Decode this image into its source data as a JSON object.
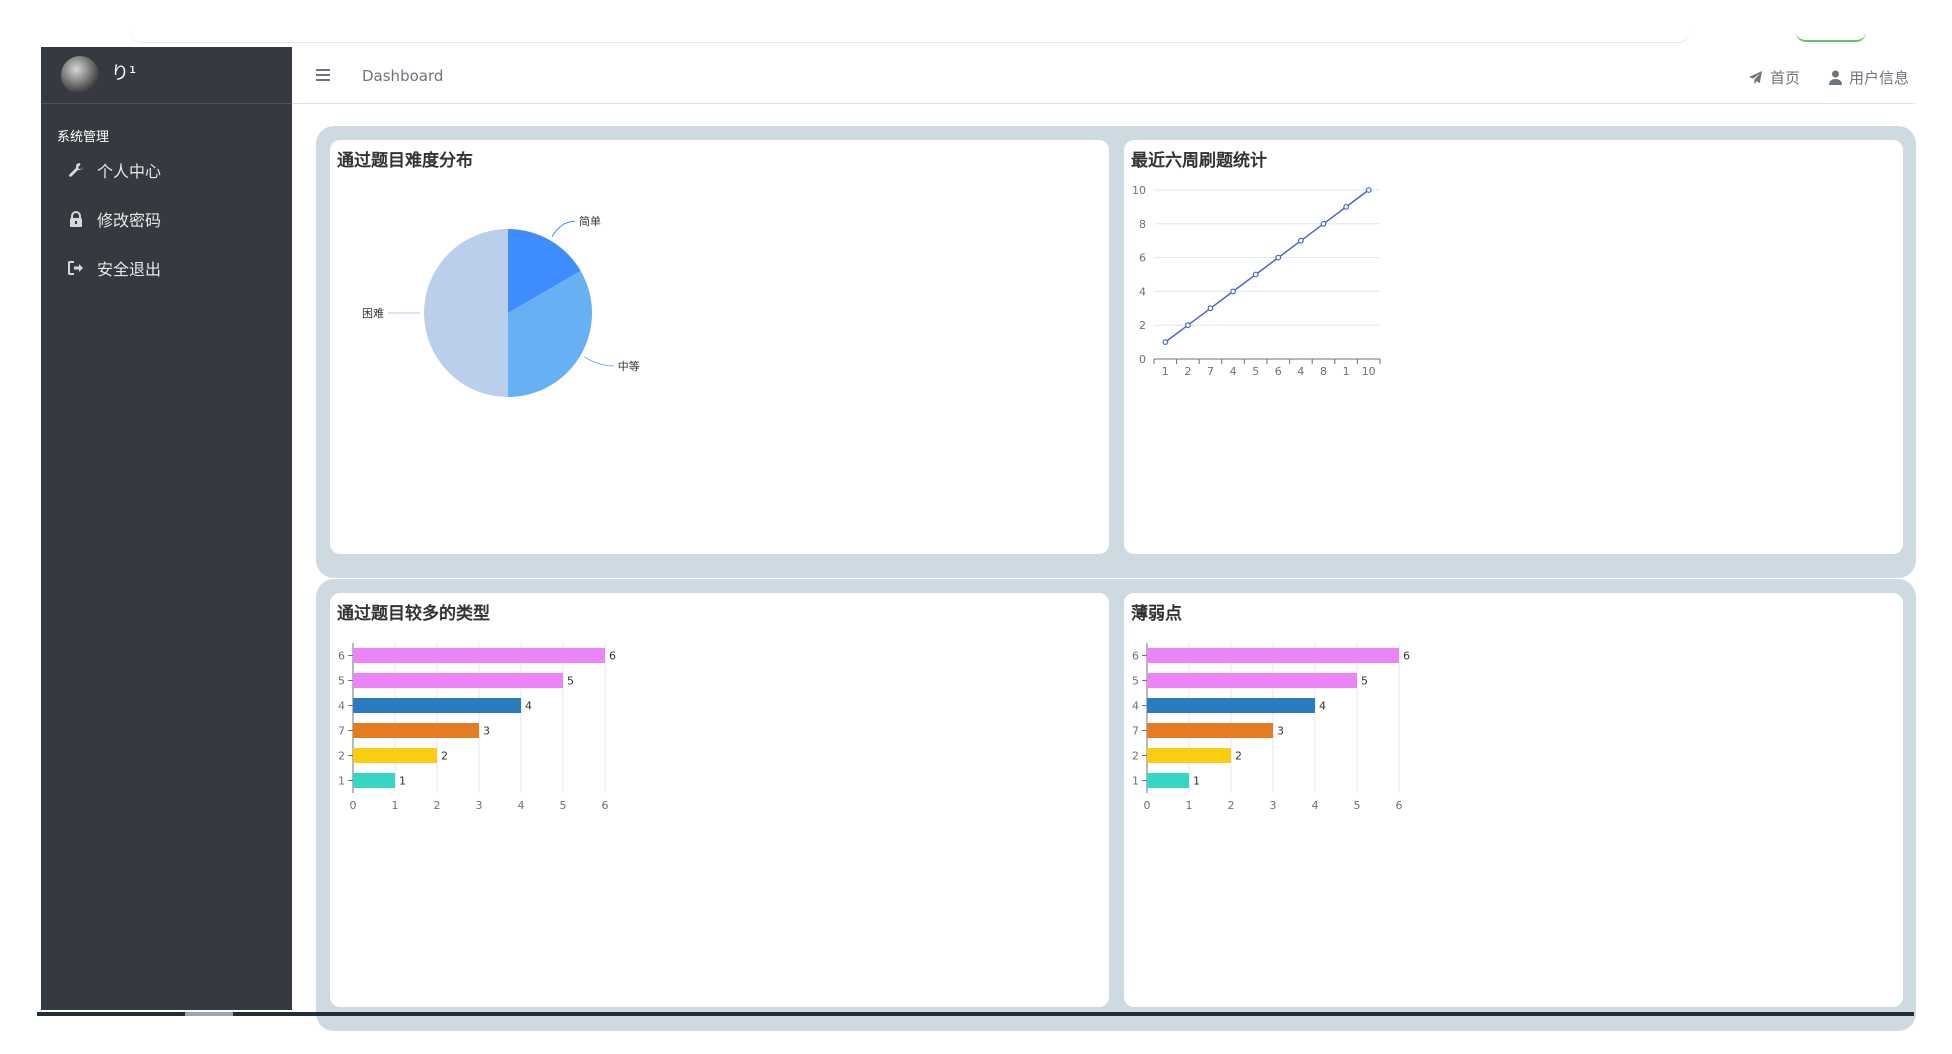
{
  "sidebar": {
    "user_name": "り¹",
    "section_header": "系统管理",
    "items": [
      {
        "label": "个人中心",
        "icon": "wrench-icon"
      },
      {
        "label": "修改密码",
        "icon": "lock-icon"
      },
      {
        "label": "安全退出",
        "icon": "sign-out-icon"
      }
    ]
  },
  "header": {
    "breadcrumb": "Dashboard",
    "links": [
      {
        "label": "首页",
        "icon": "paper-plane-icon"
      },
      {
        "label": "用户信息",
        "icon": "user-icon"
      }
    ]
  },
  "colors": {
    "sidebar_bg": "#343a40",
    "panel_bg": "#cedae2",
    "line": "#4a66c8",
    "pie": [
      "#3f8cff",
      "#66b1f4",
      "#b9cfec"
    ],
    "bars": [
      "#36d6c3",
      "#facd12",
      "#e67c22",
      "#2b7cbf",
      "#ea84f7",
      "#ea84f7"
    ]
  },
  "cards": [
    {
      "title": "通过题目难度分布"
    },
    {
      "title": "最近六周刷题统计"
    },
    {
      "title": "通过题目较多的类型"
    },
    {
      "title": "薄弱点"
    }
  ],
  "chart_data": [
    {
      "type": "pie",
      "title": "通过题目难度分布",
      "slices": [
        {
          "label": "简单",
          "value": 1
        },
        {
          "label": "中等",
          "value": 2
        },
        {
          "label": "困难",
          "value": 3
        }
      ]
    },
    {
      "type": "line",
      "title": "最近六周刷题统计",
      "categories": [
        "1",
        "2",
        "7",
        "4",
        "5",
        "6",
        "4",
        "8",
        "1",
        "10"
      ],
      "values": [
        1,
        2,
        3,
        4,
        5,
        6,
        7,
        8,
        9,
        10
      ],
      "y_ticks": [
        "0",
        "2",
        "4",
        "6",
        "8",
        "10"
      ],
      "ylim": [
        0,
        10
      ]
    },
    {
      "type": "bar",
      "orientation": "horizontal",
      "title": "通过题目较多的类型",
      "categories": [
        "1",
        "2",
        "7",
        "4",
        "5",
        "6"
      ],
      "values": [
        1,
        2,
        3,
        4,
        5,
        6
      ],
      "x_ticks": [
        "0",
        "1",
        "2",
        "3",
        "4",
        "5",
        "6"
      ],
      "xlim": [
        0,
        6
      ]
    },
    {
      "type": "bar",
      "orientation": "horizontal",
      "title": "薄弱点",
      "categories": [
        "1",
        "2",
        "7",
        "4",
        "5",
        "6"
      ],
      "values": [
        1,
        2,
        3,
        4,
        5,
        6
      ],
      "x_ticks": [
        "0",
        "1",
        "2",
        "3",
        "4",
        "5",
        "6"
      ],
      "xlim": [
        0,
        6
      ]
    }
  ]
}
